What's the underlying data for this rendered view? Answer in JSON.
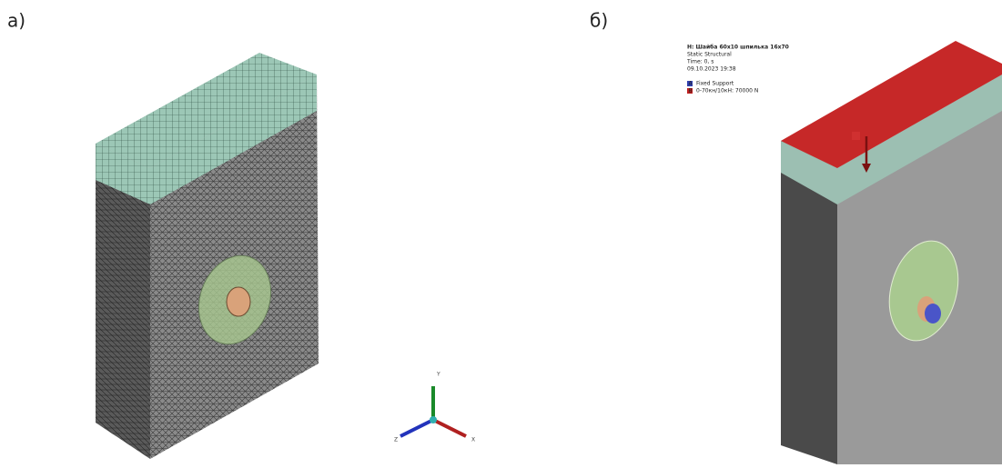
{
  "panels": [
    {
      "label": "а)",
      "axes": [
        "Y",
        "Z",
        "X"
      ]
    },
    {
      "label": "б)",
      "header": [
        "H: Шайба 60x10 шпилька 16x70",
        "Static Structural",
        "Time: 0, s",
        "09.10.2023 19:38"
      ],
      "legend": [
        {
          "key": "A",
          "text": "Fixed Support"
        },
        {
          "key": "B",
          "text": "0-70кн/10кН: 70000 N"
        }
      ]
    }
  ]
}
